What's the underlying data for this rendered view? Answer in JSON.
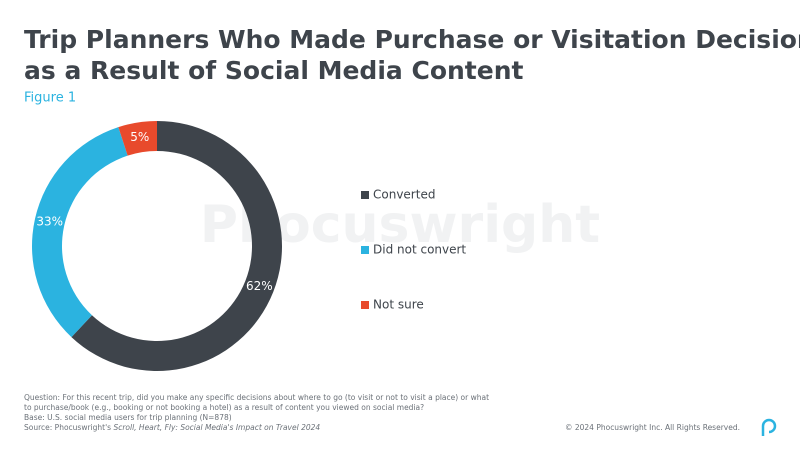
{
  "chart_data": {
    "type": "donut",
    "title_lines": [
      "Trip Planners Who Made Purchase or Visitation Decisions",
      "as a Result of Social Media Content"
    ],
    "subtitle": "Figure 1",
    "categories": [
      "Converted",
      "Did not convert",
      "Not sure"
    ],
    "values": [
      62,
      33,
      5
    ],
    "value_labels": [
      "62%",
      "33%",
      "5%"
    ],
    "colors": [
      "#3e444b",
      "#2bb3e0",
      "#e84a2c"
    ],
    "legend": "right"
  },
  "watermark": "Phocuswright",
  "footnotes": {
    "question": [
      "Question: For this recent trip, did you make any specific decisions about where to go (to visit or not to visit a place) or what",
      "to purchase/book (e.g., booking or not booking a hotel) as a result of content you viewed on social media?"
    ],
    "base": "Base: U.S. social media users for trip planning (N=878)",
    "source_prefix": "Source: Phocuswright's",
    "source_title": "Scroll, Heart, Fly: Social Media's Impact on Travel 2024"
  },
  "copyright": "© 2024 Phocuswright Inc. All Rights Reserved."
}
